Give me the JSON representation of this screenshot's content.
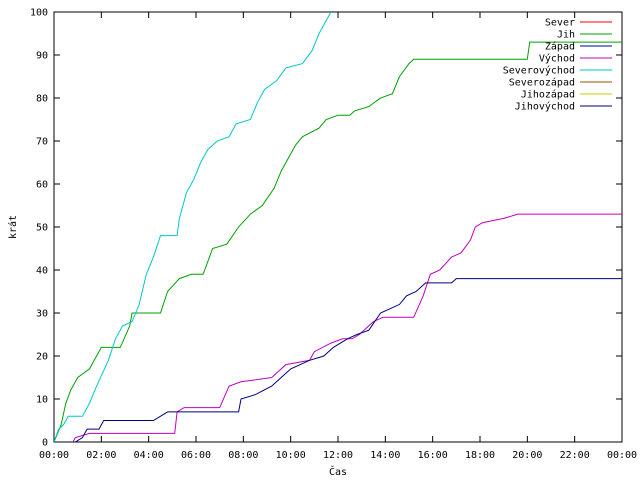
{
  "chart_data": {
    "type": "line",
    "title": "",
    "xlabel": "Čas",
    "ylabel": "krát",
    "xlim": [
      0,
      24
    ],
    "ylim": [
      0,
      100
    ],
    "grid": false,
    "legend_position": "top-right",
    "x_ticks": [
      "00:00",
      "02:00",
      "04:00",
      "06:00",
      "08:00",
      "10:00",
      "12:00",
      "14:00",
      "16:00",
      "18:00",
      "20:00",
      "22:00",
      "00:00"
    ],
    "y_ticks": [
      "0",
      "10",
      "20",
      "30",
      "40",
      "50",
      "60",
      "70",
      "80",
      "90",
      "100"
    ],
    "series": [
      {
        "name": "Sever",
        "color": "#ff0000",
        "points": []
      },
      {
        "name": "Jih",
        "color": "#00a000",
        "points": [
          [
            0,
            0
          ],
          [
            0.3,
            4
          ],
          [
            0.5,
            9
          ],
          [
            0.7,
            12
          ],
          [
            1.0,
            15
          ],
          [
            1.5,
            17
          ],
          [
            2.0,
            22
          ],
          [
            2.8,
            22
          ],
          [
            3.2,
            27
          ],
          [
            3.3,
            30
          ],
          [
            4.5,
            30
          ],
          [
            4.8,
            35
          ],
          [
            5.3,
            38
          ],
          [
            5.8,
            39
          ],
          [
            6.3,
            39
          ],
          [
            6.7,
            45
          ],
          [
            7.3,
            46
          ],
          [
            7.8,
            50
          ],
          [
            8.3,
            53
          ],
          [
            8.8,
            55
          ],
          [
            9.3,
            59
          ],
          [
            9.6,
            63
          ],
          [
            10.2,
            69
          ],
          [
            10.5,
            71
          ],
          [
            11.2,
            73
          ],
          [
            11.5,
            75
          ],
          [
            12.0,
            76
          ],
          [
            12.5,
            76
          ],
          [
            12.7,
            77
          ],
          [
            13.3,
            78
          ],
          [
            13.8,
            80
          ],
          [
            14.3,
            81
          ],
          [
            14.6,
            85
          ],
          [
            15.0,
            88
          ],
          [
            15.2,
            89
          ],
          [
            20.0,
            89
          ],
          [
            20.1,
            93
          ],
          [
            24.0,
            93
          ]
        ]
      },
      {
        "name": "Západ",
        "color": "#0000a0",
        "points": []
      },
      {
        "name": "Východ",
        "color": "#c000c0",
        "points": [
          [
            0.8,
            0
          ],
          [
            0.9,
            1
          ],
          [
            1.5,
            2
          ],
          [
            3.0,
            2
          ],
          [
            5.1,
            2
          ],
          [
            5.2,
            7
          ],
          [
            5.5,
            8
          ],
          [
            7.0,
            8
          ],
          [
            7.4,
            13
          ],
          [
            7.9,
            14
          ],
          [
            9.2,
            15
          ],
          [
            9.8,
            18
          ],
          [
            10.8,
            19
          ],
          [
            11.0,
            21
          ],
          [
            11.7,
            23
          ],
          [
            12.2,
            24
          ],
          [
            12.6,
            24
          ],
          [
            12.9,
            25
          ],
          [
            13.5,
            28
          ],
          [
            13.9,
            29
          ],
          [
            15.2,
            29
          ],
          [
            15.6,
            34
          ],
          [
            15.9,
            39
          ],
          [
            16.3,
            40
          ],
          [
            16.8,
            43
          ],
          [
            17.2,
            44
          ],
          [
            17.6,
            47
          ],
          [
            17.8,
            50
          ],
          [
            18.1,
            51
          ],
          [
            19.0,
            52
          ],
          [
            19.6,
            53
          ],
          [
            24.0,
            53
          ]
        ]
      },
      {
        "name": "Severovýchod",
        "color": "#00c8c8",
        "points": [
          [
            0,
            0
          ],
          [
            0.2,
            3
          ],
          [
            0.4,
            4
          ],
          [
            0.6,
            6
          ],
          [
            1.2,
            6
          ],
          [
            1.5,
            9
          ],
          [
            1.8,
            13
          ],
          [
            2.3,
            19
          ],
          [
            2.6,
            24
          ],
          [
            2.9,
            27
          ],
          [
            3.3,
            28
          ],
          [
            3.6,
            32
          ],
          [
            3.9,
            39
          ],
          [
            4.2,
            43
          ],
          [
            4.5,
            48
          ],
          [
            5.2,
            48
          ],
          [
            5.3,
            52
          ],
          [
            5.6,
            58
          ],
          [
            5.9,
            61
          ],
          [
            6.2,
            65
          ],
          [
            6.5,
            68
          ],
          [
            6.9,
            70
          ],
          [
            7.4,
            71
          ],
          [
            7.7,
            74
          ],
          [
            8.3,
            75
          ],
          [
            8.6,
            79
          ],
          [
            8.9,
            82
          ],
          [
            9.4,
            84
          ],
          [
            9.8,
            87
          ],
          [
            10.5,
            88
          ],
          [
            10.9,
            91
          ],
          [
            11.2,
            95
          ],
          [
            11.5,
            98
          ],
          [
            11.7,
            100
          ]
        ]
      },
      {
        "name": "Severozápad",
        "color": "#a05000",
        "points": []
      },
      {
        "name": "Jihozápad",
        "color": "#c8c800",
        "points": []
      },
      {
        "name": "Jihovýchod",
        "color": "#000080",
        "points": [
          [
            0.9,
            0
          ],
          [
            1.2,
            1
          ],
          [
            1.4,
            3
          ],
          [
            1.9,
            3
          ],
          [
            2.1,
            5
          ],
          [
            4.2,
            5
          ],
          [
            4.8,
            7
          ],
          [
            7.8,
            7
          ],
          [
            7.9,
            10
          ],
          [
            8.5,
            11
          ],
          [
            9.2,
            13
          ],
          [
            9.6,
            15
          ],
          [
            10.0,
            17
          ],
          [
            10.8,
            19
          ],
          [
            11.4,
            20
          ],
          [
            11.8,
            22
          ],
          [
            12.4,
            24
          ],
          [
            12.8,
            25
          ],
          [
            13.3,
            26
          ],
          [
            13.8,
            30
          ],
          [
            14.2,
            31
          ],
          [
            14.6,
            32
          ],
          [
            14.9,
            34
          ],
          [
            15.3,
            35
          ],
          [
            15.7,
            37
          ],
          [
            16.8,
            37
          ],
          [
            17.0,
            38
          ],
          [
            24.0,
            38
          ]
        ]
      }
    ]
  }
}
